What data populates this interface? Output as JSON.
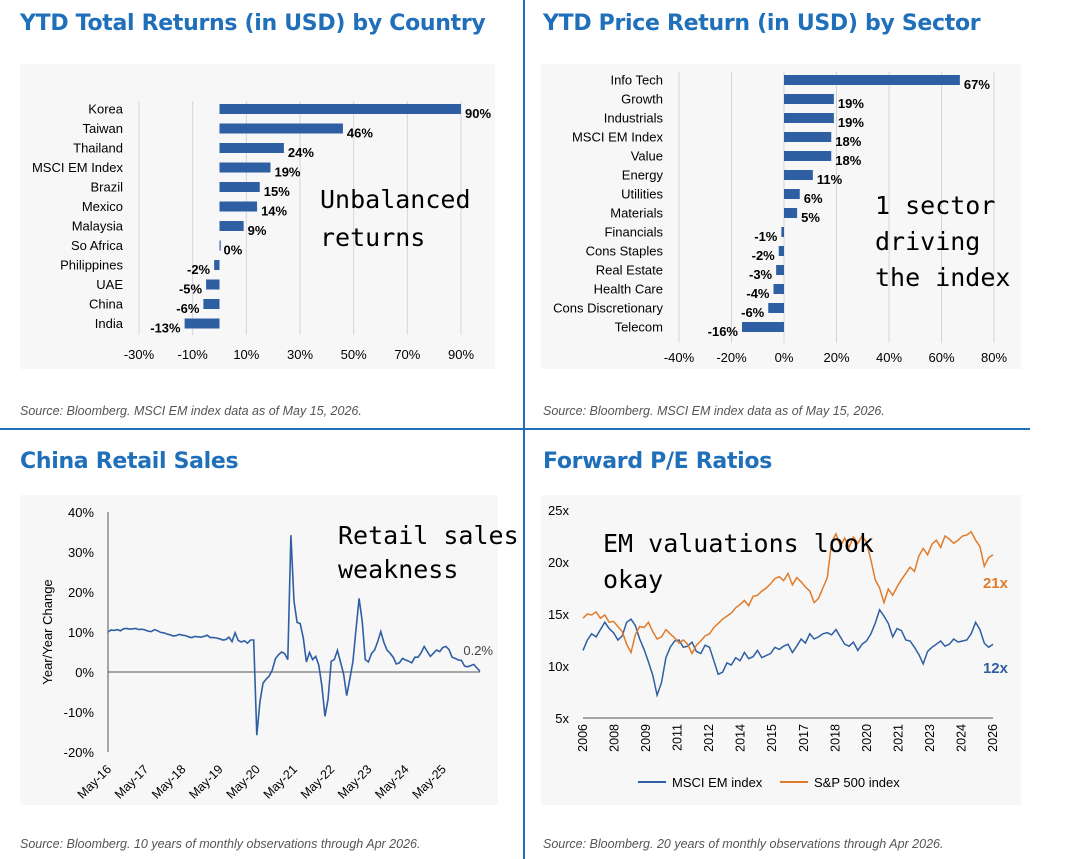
{
  "panels": [
    {
      "title": "YTD Total Returns (in USD) by Country",
      "source": "Source: Bloomberg. MSCI EM index data as of May 15, 2026."
    },
    {
      "title": "YTD Price Return (in USD) by Sector",
      "source": "Source: Bloomberg. MSCI EM index data as of May 15, 2026."
    },
    {
      "title": "China Retail Sales",
      "source": "Source: Bloomberg. 10 years of monthly observations through Apr 2026."
    },
    {
      "title": "Forward P/E Ratios",
      "source": "Source: Bloomberg. 20 years of monthly observations through Apr 2026."
    }
  ],
  "colors": {
    "accent": "#1f6fba",
    "bar": "#2e5fa3",
    "em_line": "#2e5fa3",
    "sp_line": "#e07b2a"
  },
  "chart_data": [
    {
      "type": "bar",
      "orientation": "horizontal",
      "categories": [
        "Korea",
        "Taiwan",
        "Thailand",
        "MSCI EM Index",
        "Brazil",
        "Mexico",
        "Malaysia",
        "So Africa",
        "Philippines",
        "UAE",
        "China",
        "India"
      ],
      "values": [
        90,
        46,
        24,
        19,
        15,
        14,
        9,
        0,
        -2,
        -5,
        -6,
        -13
      ],
      "value_labels": [
        "90%",
        "46%",
        "24%",
        "19%",
        "15%",
        "14%",
        "9%",
        "0%",
        "-2%",
        "-5%",
        "-6%",
        "-13%"
      ],
      "xlim": [
        -30,
        90
      ],
      "ticks": [
        -30,
        -10,
        10,
        30,
        50,
        70,
        90
      ],
      "tick_labels": [
        "-30%",
        "-10%",
        "10%",
        "30%",
        "50%",
        "70%",
        "90%"
      ],
      "annotation": [
        "Unbalanced",
        "returns"
      ]
    },
    {
      "type": "bar",
      "orientation": "horizontal",
      "categories": [
        "Info Tech",
        "Growth",
        "Industrials",
        "MSCI EM Index",
        "Value",
        "Energy",
        "Utilities",
        "Materials",
        "Financials",
        "Cons Staples",
        "Real Estate",
        "Health Care",
        "Cons Discretionary",
        "Telecom"
      ],
      "values": [
        67,
        19,
        19,
        18,
        18,
        11,
        6,
        5,
        -1,
        -2,
        -3,
        -4,
        -6,
        -16
      ],
      "value_labels": [
        "67%",
        "19%",
        "19%",
        "18%",
        "18%",
        "11%",
        "6%",
        "5%",
        "-1%",
        "-2%",
        "-3%",
        "-4%",
        "-6%",
        "-16%"
      ],
      "xlim": [
        -40,
        80
      ],
      "ticks": [
        -40,
        -20,
        0,
        20,
        40,
        60,
        80
      ],
      "tick_labels": [
        "-40%",
        "-20%",
        "0%",
        "20%",
        "40%",
        "60%",
        "80%"
      ],
      "annotation": [
        "1 sector",
        "driving",
        "the index"
      ]
    },
    {
      "type": "line",
      "ylabel": "Year/Year Change",
      "ylim": [
        -20,
        40
      ],
      "y_ticks": [
        -20,
        -10,
        0,
        10,
        20,
        30,
        40
      ],
      "y_tick_labels": [
        "-20%",
        "-10%",
        "0%",
        "10%",
        "20%",
        "30%",
        "40%"
      ],
      "x_tick_labels": [
        "May-16",
        "May-17",
        "May-18",
        "May-19",
        "May-20",
        "May-21",
        "May-22",
        "May-23",
        "May-24",
        "May-25"
      ],
      "x_start": "May-16",
      "series": [
        {
          "values": [
            10,
            10.5,
            10.4,
            10.6,
            10.3,
            10.8,
            10.9,
            10.7,
            10.8,
            10.9,
            10.6,
            10.7,
            10.5,
            10.2,
            10.1,
            10.6,
            10.3,
            9.9,
            9.8,
            9.5,
            9.3,
            9,
            9.1,
            9.4,
            9.2,
            9.1,
            8.8,
            8.6,
            8.9,
            8.8,
            8.7,
            8.9,
            9.2,
            8.6,
            8.6,
            8.5,
            8.3,
            8,
            8.1,
            8.7,
            7.6,
            9.8,
            7.9,
            7.5,
            7.8,
            7.2,
            8,
            8,
            -15.8,
            -7.5,
            -2.8,
            -1.8,
            -1,
            0.5,
            3.3,
            4.3,
            5,
            4.6,
            3.1,
            34.2,
            17.7,
            12.4,
            12.1,
            8.5,
            2.5,
            4.9,
            3.1,
            3.9,
            1.7,
            -3.5,
            -11.1,
            -6.7,
            2.7,
            3.1,
            5.4,
            2.5,
            -0.5,
            -5.9,
            -1.8,
            2.6,
            10.6,
            18.4,
            12.7,
            3.1,
            2.5,
            4.6,
            5.5,
            7.6,
            10.1,
            7.4,
            5.5,
            4.7,
            3.7,
            2,
            2.3,
            3.4,
            3,
            2.7,
            2.3,
            3.7,
            3.7,
            4.8,
            6.4,
            5.1,
            3.9,
            4.7,
            5.5,
            5.1,
            6.1,
            6.4,
            5.6,
            3.7,
            3.4,
            3,
            2.9,
            1.5,
            1.3,
            1.6,
            1.9,
            1,
            0.2
          ]
        }
      ],
      "end_label": "0.2%",
      "annotation": [
        "Retail sales",
        "weakness"
      ]
    },
    {
      "type": "line",
      "ylim": [
        5,
        25
      ],
      "y_ticks": [
        5,
        10,
        15,
        20,
        25
      ],
      "y_tick_labels": [
        "5x",
        "10x",
        "15x",
        "20x",
        "25x"
      ],
      "x_tick_labels": [
        "2006",
        "2008",
        "2009",
        "2011",
        "2012",
        "2014",
        "2015",
        "2017",
        "2018",
        "2020",
        "2021",
        "2023",
        "2024",
        "2026"
      ],
      "series": [
        {
          "name": "MSCI EM index",
          "color": "#2e5fa3",
          "end_label": "12x",
          "values": [
            11.5,
            12.5,
            13.1,
            12.8,
            13.5,
            14.2,
            13.6,
            13.2,
            12.5,
            12.9,
            14.2,
            14.5,
            13.9,
            12.6,
            11.6,
            10.4,
            9.1,
            7.2,
            8.4,
            10.8,
            11.8,
            12.4,
            12.5,
            11.8,
            11.9,
            12.3,
            11.4,
            11.2,
            12,
            11.8,
            10.5,
            9.2,
            9.4,
            10.3,
            10.1,
            10.8,
            10.5,
            11.3,
            10.7,
            10.9,
            11.5,
            10.8,
            11,
            11.2,
            11.8,
            11.6,
            11.9,
            12.1,
            11.3,
            11.9,
            12.6,
            12.2,
            13.1,
            12.6,
            12.8,
            13.1,
            13.2,
            13,
            13.5,
            12.8,
            12.1,
            11.9,
            12.3,
            11.5,
            12.1,
            12.4,
            13.1,
            14.1,
            15.4,
            14.8,
            14.1,
            12.8,
            13.6,
            13.4,
            12.5,
            12.4,
            11.8,
            11.1,
            10.2,
            11.4,
            11.8,
            12.1,
            12.4,
            11.9,
            12.1,
            12.6,
            12.3,
            12.4,
            12.5,
            13.1,
            14.2,
            13.5,
            12.2,
            11.8,
            12.1
          ]
        },
        {
          "name": "S&P 500 index",
          "color": "#e07b2a",
          "end_label": "21x",
          "values": [
            14.6,
            15,
            14.9,
            15.2,
            14.6,
            14.9,
            14.2,
            14.3,
            13.8,
            13.3,
            12.1,
            11.3,
            13,
            13.8,
            13.7,
            14.2,
            13.3,
            12.6,
            12.8,
            13.5,
            13.1,
            12.7,
            12.2,
            12.5,
            12.1,
            11.2,
            12,
            12.4,
            12.9,
            13.1,
            13.7,
            14.1,
            14.5,
            14.8,
            15.1,
            15.6,
            15.9,
            16.3,
            15.8,
            16.7,
            16.8,
            17.2,
            17.5,
            17.9,
            18.4,
            18.6,
            18.2,
            18.9,
            17.8,
            18.5,
            18.1,
            17.6,
            17.2,
            16.1,
            16.5,
            17.5,
            18.5,
            21.9,
            22.7,
            21.5,
            22.3,
            21.4,
            22.4,
            21.8,
            22.5,
            21.9,
            20.2,
            18.3,
            17.5,
            16.1,
            17.4,
            16.8,
            17.6,
            18.3,
            18.9,
            19.5,
            19.1,
            20.6,
            21.3,
            20.7,
            21.7,
            22.1,
            21.4,
            22.5,
            22.2,
            21.8,
            22.1,
            22.5,
            22.6,
            22.9,
            22.1,
            21.5,
            19.6,
            20.4,
            20.7
          ]
        }
      ],
      "legend_position": "bottom",
      "annotation": [
        "EM valuations look",
        "okay"
      ]
    }
  ]
}
